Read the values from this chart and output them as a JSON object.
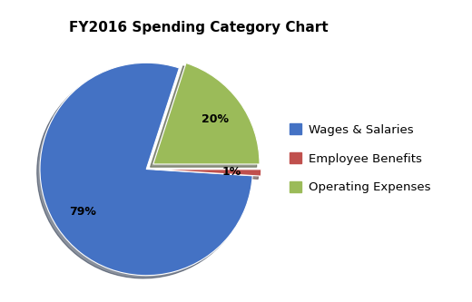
{
  "title": "FY2016 Spending Category Chart",
  "labels": [
    "Wages & Salaries",
    "Employee Benefits",
    "Operating Expenses"
  ],
  "values": [
    79,
    1,
    20
  ],
  "colors": [
    "#4472C4",
    "#C0504D",
    "#9BBB59"
  ],
  "explode": [
    0.0,
    0.08,
    0.08
  ],
  "startangle": 72,
  "title_fontsize": 11,
  "background_color": "#ffffff",
  "legend_fontsize": 9.5,
  "pct_fontsize": 9
}
